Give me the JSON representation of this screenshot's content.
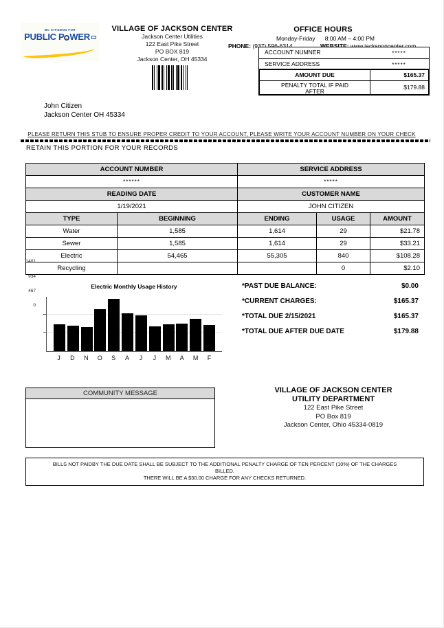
{
  "logo": {
    "tagline": "BC CITIZENS FOR",
    "brand_part1": "PUBLIC P",
    "brand_part2": "WER"
  },
  "colors": {
    "logo_blue": "#1b4a9e",
    "logo_yellow": "#ffc20e",
    "table_header_gray": "#d9d9d9"
  },
  "header": {
    "org": "VILLAGE OF JACKSON CENTER",
    "dept": "Jackson Center Utilities",
    "street": "122 East Pike Street",
    "po": "PO BOX 819",
    "city": "Jackson Center, OH 45334"
  },
  "office": {
    "title": "OFFICE HOURS",
    "days": "Monday-Friday",
    "hours": "8:00 AM – 4:00 PM",
    "phone_label": "PHONE:",
    "phone": "(937) 596-6314",
    "website_label": "WEBSITE:",
    "website": "www.jacksponcenter.com"
  },
  "account_box": {
    "rows": [
      {
        "label": "ACCOUNT NUMNER",
        "value": "*****"
      },
      {
        "label": "SERVICE ADDRESS",
        "value": "*****"
      },
      {
        "label": "AMOUNT DUE",
        "value": "$165.37"
      },
      {
        "label": "PENALTY TOTAL IF PAID AFTER",
        "value": "$179.88"
      }
    ]
  },
  "recipient": {
    "name": "John Citizen",
    "address": "Jackson Center OH 45334"
  },
  "stub_notice": "PLEASE RETURN THIS STUB TO ENSURE PROPER CREDIT TO YOUR ACCOUNT, PLEASE WRITE YOUR ACCOUNT NUMBER ON YOUR CHECK",
  "retain_notice": "RETAIN THIS PORTION FOR YOUR RECORDS",
  "records": {
    "account_number_label": "ACCOUNT NUMBER",
    "account_number_value": "******",
    "service_address_label": "SERVICE ADDRESS",
    "service_address_value": "*****",
    "reading_date_label": "READING DATE",
    "reading_date_value": "1/19/2021",
    "customer_name_label": "CUSTOMER NAME",
    "customer_name_value": "JOHN CITIZEN",
    "usage_headers": [
      "TYPE",
      "BEGINNING",
      "ENDING",
      "USAGE",
      "AMOUNT"
    ],
    "usage_rows": [
      {
        "type": "Water",
        "beginning": "1,585",
        "ending": "1,614",
        "usage": "29",
        "amount": "$21.78"
      },
      {
        "type": "Sewer",
        "beginning": "1,585",
        "ending": "1,614",
        "usage": "29",
        "amount": "$33.21"
      },
      {
        "type": "Electric",
        "beginning": "54,465",
        "ending": "55,305",
        "usage": "840",
        "amount": "$108.28"
      },
      {
        "type": "Recycling",
        "beginning": "",
        "ending": "",
        "usage": "0",
        "amount": "$2.10"
      }
    ]
  },
  "chart_data": {
    "type": "bar",
    "title": "Electric Monthly Usage History",
    "categories": [
      "J",
      "D",
      "N",
      "O",
      "S",
      "A",
      "J",
      "J",
      "M",
      "A",
      "M",
      "F"
    ],
    "values": [
      695,
      655,
      615,
      1090,
      1355,
      975,
      915,
      640,
      695,
      705,
      840,
      675
    ],
    "y_ticks": [
      "1401",
      "934",
      "467",
      "0"
    ],
    "ylim": [
      0,
      1401
    ],
    "xlabel": "",
    "ylabel": "",
    "bar_color": "#000000",
    "grid": true,
    "legend": "none"
  },
  "summary": {
    "rows": [
      {
        "label": "*PAST DUE BALANCE:",
        "value": "$0.00"
      },
      {
        "label": "*CURRENT CHARGES:",
        "value": "$165.37"
      },
      {
        "label": "*TOTAL DUE 2/15/2021",
        "value": "$165.37"
      },
      {
        "label": "*TOTAL DUE AFTER DUE DATE",
        "value": "$179.88"
      }
    ]
  },
  "community": {
    "header": "COMMUNITY MESSAGE",
    "body": ""
  },
  "remit": {
    "org": "VILLAGE OF JACKSON CENTER",
    "dept": "UTILITY DEPARTMENT",
    "street": "122 East Pike Street",
    "po": "PO Box 819",
    "city": "Jackson Center, Ohio 45334-0819"
  },
  "penalty_notice": {
    "line1": "BILLS NOT PAIDBY THE DUE DATE SHALL BE SUBJECT TO THE ADDITIONAL PENALTY CHARGE OF TEN PERCENT (10%) OF THE CHARGES BILLED.",
    "line2": "THERE WILL BE A $30.00 CHARGE FOR ANY CHECKS RETURNED."
  }
}
